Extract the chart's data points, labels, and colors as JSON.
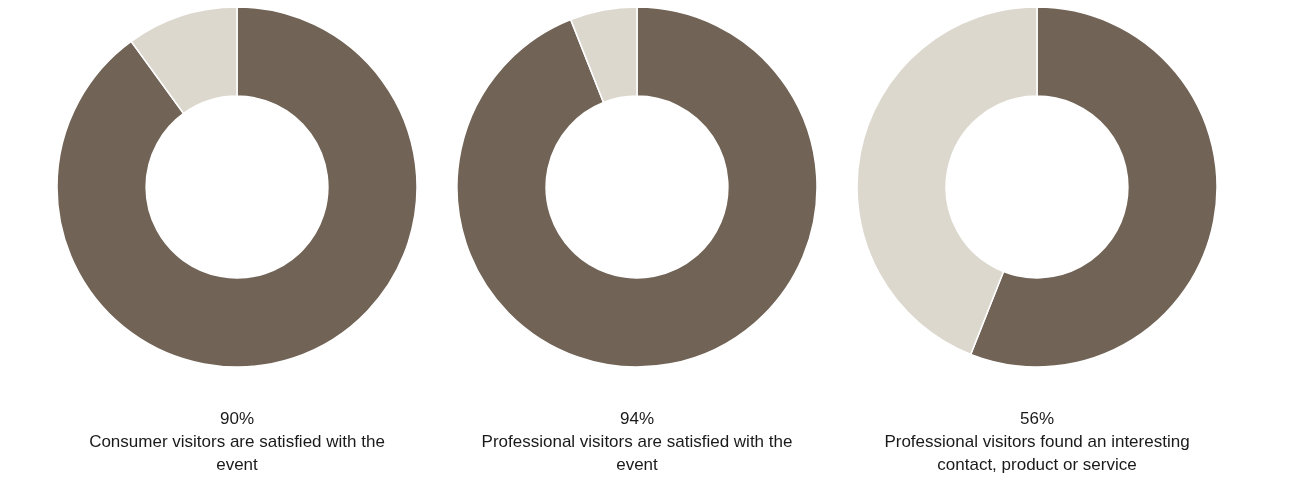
{
  "chart_data": [
    {
      "type": "donut",
      "categories": [
        null,
        null
      ],
      "values": [
        90,
        10
      ],
      "colors": [
        "#716457",
        "#dcd8ce"
      ],
      "value_labels": [
        "90%",
        null
      ],
      "title": "Consumer visitors are satisfied with the event"
    },
    {
      "type": "donut",
      "categories": [
        null,
        null
      ],
      "values": [
        94,
        6
      ],
      "colors": [
        "#716457",
        "#dcd8ce"
      ],
      "value_labels": [
        "94%",
        null
      ],
      "title": "Professional visitors are satisfied with the event"
    },
    {
      "type": "donut",
      "categories": [
        null,
        null
      ],
      "values": [
        56,
        44
      ],
      "colors": [
        "#716457",
        "#dcd8ce"
      ],
      "value_labels": [
        "56%",
        null
      ],
      "title": "Professional visitors found an interesting contact, product or service"
    }
  ]
}
